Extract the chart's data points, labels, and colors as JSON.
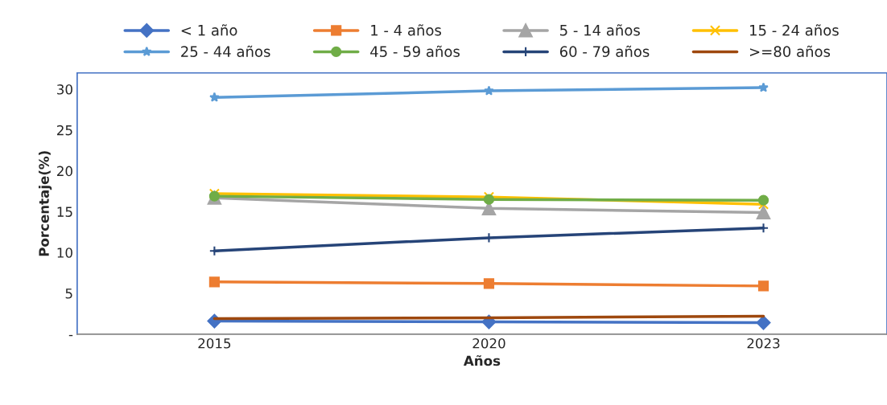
{
  "chart_data": {
    "type": "line",
    "xlabel": "Años",
    "ylabel": "Porcentaje(%)",
    "categories": [
      "2015",
      "2020",
      "2023"
    ],
    "series": [
      {
        "name": "< 1 año",
        "color": "#4472c4",
        "marker": "diamond",
        "values": [
          1.6,
          1.5,
          1.4
        ]
      },
      {
        "name": "1 - 4 años",
        "color": "#ed7d31",
        "marker": "square",
        "values": [
          6.4,
          6.2,
          5.9
        ]
      },
      {
        "name": "5 - 14 años",
        "color": "#a5a5a5",
        "marker": "triangle",
        "values": [
          16.7,
          15.4,
          14.9
        ]
      },
      {
        "name": "15 - 24 años",
        "color": "#ffc000",
        "marker": "cross",
        "values": [
          17.2,
          16.8,
          15.9
        ]
      },
      {
        "name": "25 - 44 años",
        "color": "#5b9bd5",
        "marker": "star",
        "values": [
          29.0,
          29.8,
          30.2
        ]
      },
      {
        "name": "45 - 59 años",
        "color": "#70ad47",
        "marker": "circle",
        "values": [
          16.9,
          16.5,
          16.4
        ]
      },
      {
        "name": "60 - 79 años",
        "color": "#264478",
        "marker": "plus",
        "values": [
          10.2,
          11.8,
          13.0
        ]
      },
      {
        "name": ">=80 años",
        "color": "#9e480e",
        "marker": "none",
        "values": [
          1.9,
          2.0,
          2.2
        ]
      }
    ],
    "ylim": [
      0,
      32
    ],
    "yticks": [
      {
        "value": 0,
        "label": "-"
      },
      5,
      10,
      15,
      20,
      25,
      30
    ],
    "grid": false,
    "legend": "top"
  }
}
